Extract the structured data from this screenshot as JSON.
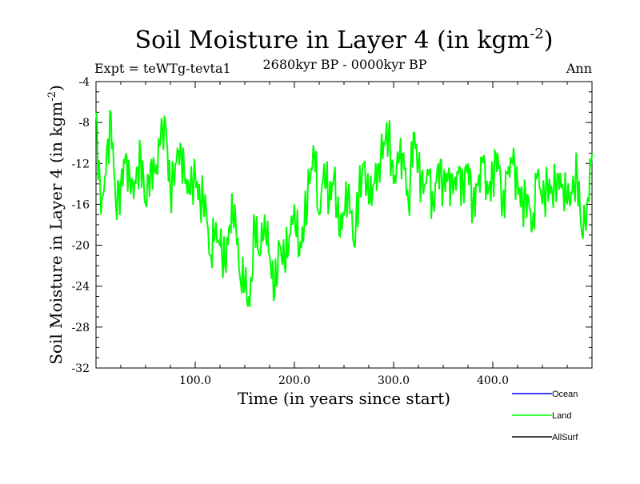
{
  "chart_data": {
    "type": "line",
    "title": "Soil Moisture in Layer 4 (in kgm",
    "title_sup": "-2",
    "title_end": ")",
    "subtitle": "2680kyr BP - 0000kyr BP",
    "left_label": "Expt = teWTg-tevta1",
    "right_label": "Ann",
    "xlabel": "Time (in years since start)",
    "ylabel": "Soil Moisture in Layer 4 (in kgm",
    "ylabel_sup": "-2",
    "ylabel_end": ")",
    "xlim": [
      0,
      500
    ],
    "ylim": [
      -32,
      -4
    ],
    "x_ticks": [
      {
        "value": 100,
        "label": "100.0"
      },
      {
        "value": 200,
        "label": "200.0"
      },
      {
        "value": 300,
        "label": "300.0"
      },
      {
        "value": 400,
        "label": "400.0"
      }
    ],
    "y_ticks": [
      {
        "value": -4,
        "label": "-4"
      },
      {
        "value": -8,
        "label": "-8"
      },
      {
        "value": -12,
        "label": "-12"
      },
      {
        "value": -16,
        "label": "-16"
      },
      {
        "value": -20,
        "label": "-20"
      },
      {
        "value": -24,
        "label": "-24"
      },
      {
        "value": -28,
        "label": "-28"
      },
      {
        "value": -32,
        "label": "-32"
      }
    ],
    "legend": [
      {
        "name": "Ocean",
        "color": "#0000ff"
      },
      {
        "name": "Land",
        "color": "#00ff00"
      },
      {
        "name": "AllSurf",
        "color": "#000000"
      }
    ],
    "series": [
      {
        "name": "Land",
        "color": "#00ff00",
        "x": [
          0,
          5,
          10,
          15,
          20,
          25,
          30,
          35,
          40,
          45,
          50,
          55,
          60,
          65,
          70,
          75,
          80,
          85,
          90,
          95,
          100,
          105,
          110,
          115,
          120,
          125,
          130,
          135,
          140,
          145,
          150,
          155,
          160,
          165,
          170,
          175,
          180,
          185,
          190,
          195,
          200,
          205,
          210,
          215,
          220,
          225,
          230,
          235,
          240,
          245,
          250,
          255,
          260,
          265,
          270,
          275,
          280,
          285,
          290,
          295,
          300,
          305,
          310,
          315,
          320,
          325,
          330,
          335,
          340,
          345,
          350,
          355,
          360,
          365,
          370,
          375,
          380,
          385,
          390,
          395,
          400,
          405,
          410,
          415,
          420,
          425,
          430,
          435,
          440,
          445,
          450,
          455,
          460,
          465,
          470,
          475,
          480,
          485,
          490,
          495,
          500
        ],
        "values": [
          -7,
          -17,
          -13,
          -7,
          -16,
          -14,
          -11,
          -15,
          -14,
          -11,
          -16,
          -12,
          -13,
          -10,
          -8,
          -15,
          -12,
          -10,
          -14,
          -15,
          -13,
          -16,
          -15,
          -21,
          -19,
          -20,
          -22,
          -18,
          -16,
          -23,
          -24,
          -26,
          -18,
          -21,
          -17,
          -21,
          -25,
          -20,
          -22,
          -19,
          -16,
          -21,
          -18,
          -14,
          -11,
          -17,
          -12,
          -16,
          -13,
          -19,
          -17,
          -14,
          -20,
          -15,
          -12,
          -16,
          -14,
          -12,
          -10,
          -9,
          -14,
          -12,
          -11,
          -16,
          -9,
          -12,
          -15,
          -13,
          -16,
          -12,
          -14,
          -13,
          -15,
          -13,
          -14,
          -12,
          -16,
          -14,
          -12,
          -15,
          -13,
          -11,
          -16,
          -13,
          -12,
          -14,
          -16,
          -15,
          -18,
          -13,
          -16,
          -14,
          -15,
          -13,
          -14,
          -16,
          -15,
          -13,
          -19,
          -16,
          -11
        ]
      }
    ]
  }
}
